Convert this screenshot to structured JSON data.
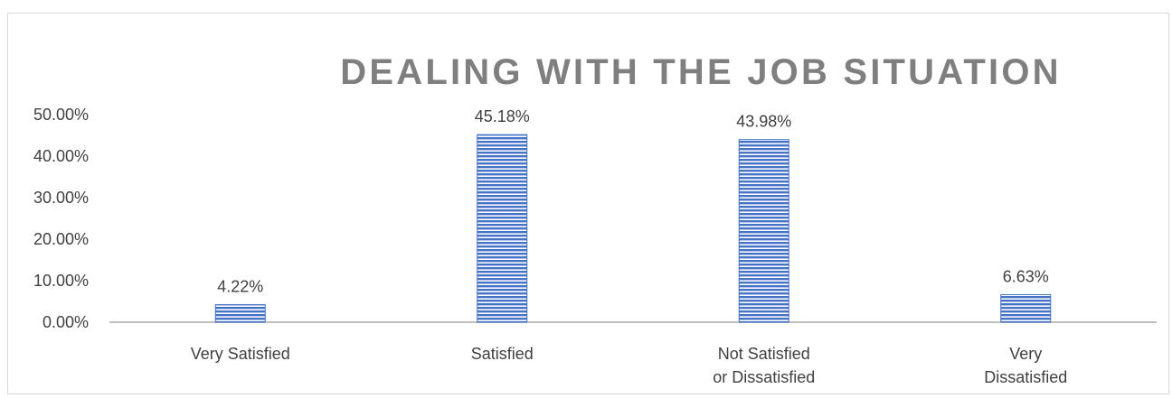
{
  "chart_data": {
    "type": "bar",
    "title": "DEALING WITH THE JOB SITUATION",
    "categories": [
      [
        "Very Satisfied"
      ],
      [
        "Satisfied"
      ],
      [
        "Not Satisfied",
        "or Dissatisfied"
      ],
      [
        "Very",
        "Dissatisfied"
      ]
    ],
    "values": [
      4.22,
      45.18,
      43.98,
      6.63
    ],
    "value_labels": [
      "4.22%",
      "45.18%",
      "43.98%",
      "6.63%"
    ],
    "ylim": [
      0,
      50
    ],
    "yticks": [
      0,
      10,
      20,
      30,
      40,
      50
    ],
    "ytick_labels": [
      "0.00%",
      "10.00%",
      "20.00%",
      "30.00%",
      "40.00%",
      "50.00%"
    ],
    "xlabel": "",
    "ylabel": "",
    "grid": false,
    "legend": "none",
    "bar_color": "#4472c4",
    "bar_pattern": "horizontal-stripes"
  }
}
